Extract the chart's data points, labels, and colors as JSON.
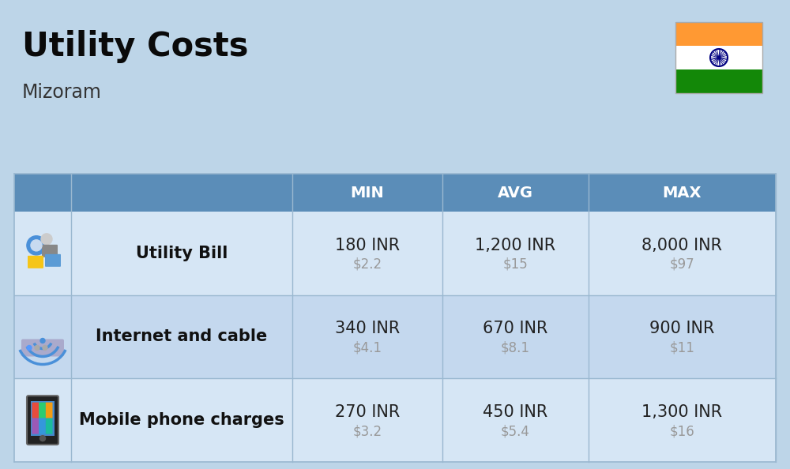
{
  "title": "Utility Costs",
  "subtitle": "Mizoram",
  "background_color": "#bdd5e8",
  "header_bg_color": "#5b8db8",
  "header_text_color": "#ffffff",
  "row_colors": [
    "#d6e6f5",
    "#c4d8ee"
  ],
  "col_headers": [
    "MIN",
    "AVG",
    "MAX"
  ],
  "rows": [
    {
      "label": "Utility Bill",
      "min_inr": "180 INR",
      "min_usd": "$2.2",
      "avg_inr": "1,200 INR",
      "avg_usd": "$15",
      "max_inr": "8,000 INR",
      "max_usd": "$97"
    },
    {
      "label": "Internet and cable",
      "min_inr": "340 INR",
      "min_usd": "$4.1",
      "avg_inr": "670 INR",
      "avg_usd": "$8.1",
      "max_inr": "900 INR",
      "max_usd": "$11"
    },
    {
      "label": "Mobile phone charges",
      "min_inr": "270 INR",
      "min_usd": "$3.2",
      "avg_inr": "450 INR",
      "avg_usd": "$5.4",
      "max_inr": "1,300 INR",
      "max_usd": "$16"
    }
  ],
  "flag_colors": [
    "#FF9933",
    "#FFFFFF",
    "#138808"
  ],
  "usd_color": "#999999",
  "label_color": "#111111",
  "inr_color": "#222222",
  "title_fontsize": 30,
  "subtitle_fontsize": 17,
  "header_fontsize": 14,
  "cell_inr_fontsize": 15,
  "cell_usd_fontsize": 12,
  "label_fontsize": 15
}
